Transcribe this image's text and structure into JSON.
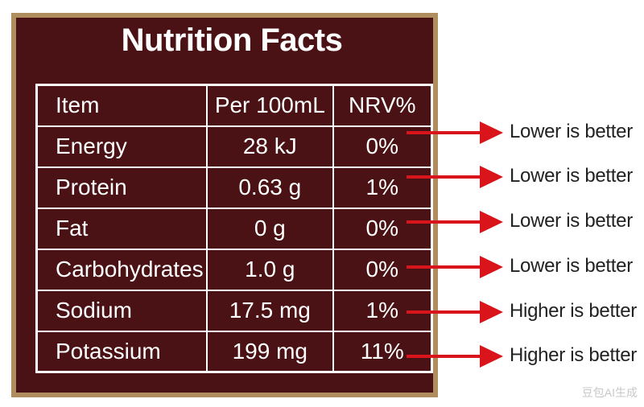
{
  "panel": {
    "title": "Nutrition Facts",
    "colors": {
      "background": "#4a1214",
      "frame": "#b08d5e",
      "text": "#ffffff",
      "arrow": "#d9151b"
    },
    "header": {
      "item": "Item",
      "per": "Per 100mL",
      "nrv": "NRV%"
    },
    "rows": [
      {
        "item": "Energy",
        "per": "28 kJ",
        "nrv": "0%",
        "note": "Lower is better"
      },
      {
        "item": "Protein",
        "per": "0.63 g",
        "nrv": "1%",
        "note": "Lower is better"
      },
      {
        "item": "Fat",
        "per": "0 g",
        "nrv": "0%",
        "note": "Lower is better"
      },
      {
        "item": "Carbohydrates",
        "per": "1.0 g",
        "nrv": "0%",
        "note": "Lower is better"
      },
      {
        "item": "Sodium",
        "per": "17.5 mg",
        "nrv": "1%",
        "note": "Higher is better"
      },
      {
        "item": "Potassium",
        "per": "199 mg",
        "nrv": "11%",
        "note": "Higher is better"
      }
    ]
  },
  "watermark": "豆包AI生成"
}
